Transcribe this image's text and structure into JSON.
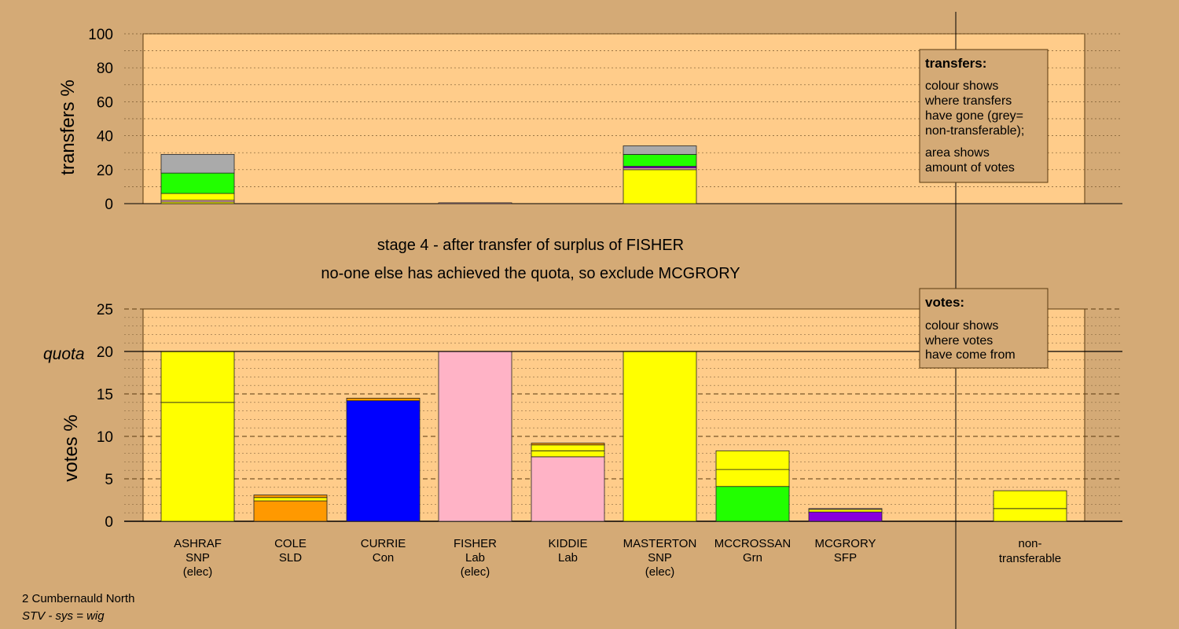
{
  "stage": {
    "line1": "stage 4 - after transfer of surplus of FISHER",
    "line2": "no-one else has achieved the quota, so exclude MCGRORY"
  },
  "footer": {
    "line1": "2 Cumbernauld North",
    "line2": "STV - sys = wig"
  },
  "legend_transfers": {
    "heading": "transfers:",
    "lines1": [
      "colour shows",
      "where transfers",
      "have gone (grey=",
      "non-transferable);"
    ],
    "lines2": [
      "area shows",
      "amount of votes"
    ]
  },
  "legend_votes": {
    "heading": "votes:",
    "lines": [
      "colour shows",
      "where votes",
      "have come from"
    ]
  },
  "colors": {
    "SNP": "#ffff00",
    "SLD": "#ff9900",
    "Con": "#0000ff",
    "Lab": "#ffb3c6",
    "Grn": "#22ff00",
    "SFP": "#8800dd",
    "nontransferable": "#aaaaaa",
    "background": "#d4aa76",
    "plot_bg": "#ffcc8a"
  },
  "chart_data": [
    {
      "type": "bar",
      "stacked": true,
      "ylabel": "transfers %",
      "ylim": [
        0,
        100
      ],
      "yticks": [
        0,
        20,
        40,
        60,
        80,
        100
      ],
      "categories": [
        "ASHRAF",
        "COLE",
        "CURRIE",
        "FISHER",
        "KIDDIE",
        "MASTERTON",
        "MCCROSSAN",
        "MCGRORY"
      ],
      "bars": [
        {
          "category": "ASHRAF",
          "segments": [
            {
              "color": "SNP",
              "value": 1
            },
            {
              "color": "Lab",
              "value": 1
            },
            {
              "color": "SNP",
              "value": 4
            },
            {
              "color": "Grn",
              "value": 12
            },
            {
              "color": "nontransferable",
              "value": 11
            }
          ]
        },
        {
          "category": "FISHER",
          "segments": [
            {
              "color": "Lab",
              "value": 0.5
            }
          ]
        },
        {
          "category": "MASTERTON",
          "segments": [
            {
              "color": "SNP",
              "value": 20
            },
            {
              "color": "Lab",
              "value": 1
            },
            {
              "color": "SFP",
              "value": 1
            },
            {
              "color": "Grn",
              "value": 7
            },
            {
              "color": "nontransferable",
              "value": 5
            }
          ]
        }
      ]
    },
    {
      "type": "bar",
      "stacked": true,
      "ylabel": "votes %",
      "ylim": [
        0,
        25
      ],
      "yticks": [
        0,
        5,
        10,
        15,
        20,
        25
      ],
      "quota": 20,
      "quota_label": "quota",
      "candidates": [
        {
          "name": "ASHRAF",
          "party": "SNP",
          "status": "(elec)",
          "segments": [
            {
              "color": "SNP",
              "value": 14
            },
            {
              "color": "SNP",
              "value": 6
            }
          ]
        },
        {
          "name": "COLE",
          "party": "SLD",
          "status": "",
          "segments": [
            {
              "color": "SLD",
              "value": 2.4
            },
            {
              "color": "SNP",
              "value": 0.4
            },
            {
              "color": "SLD",
              "value": 0.3
            }
          ]
        },
        {
          "name": "CURRIE",
          "party": "Con",
          "status": "",
          "segments": [
            {
              "color": "Con",
              "value": 14.2
            },
            {
              "color": "SLD",
              "value": 0.3
            }
          ]
        },
        {
          "name": "FISHER",
          "party": "Lab",
          "status": "(elec)",
          "segments": [
            {
              "color": "Lab",
              "value": 20
            }
          ]
        },
        {
          "name": "KIDDIE",
          "party": "Lab",
          "status": "",
          "segments": [
            {
              "color": "Lab",
              "value": 7.6
            },
            {
              "color": "SNP",
              "value": 0.7
            },
            {
              "color": "SNP",
              "value": 0.7
            },
            {
              "color": "SLD",
              "value": 0.2
            }
          ]
        },
        {
          "name": "MASTERTON",
          "party": "SNP",
          "status": "(elec)",
          "segments": [
            {
              "color": "SNP",
              "value": 20
            }
          ]
        },
        {
          "name": "MCCROSSAN",
          "party": "Grn",
          "status": "",
          "segments": [
            {
              "color": "Grn",
              "value": 4.1
            },
            {
              "color": "SNP",
              "value": 2
            },
            {
              "color": "SNP",
              "value": 2.2
            }
          ]
        },
        {
          "name": "MCGRORY",
          "party": "SFP",
          "status": "",
          "segments": [
            {
              "color": "SFP",
              "value": 1.1
            },
            {
              "color": "SNP",
              "value": 0.3
            },
            {
              "color": "Lab",
              "value": 0.1
            }
          ]
        }
      ],
      "nontransferable": {
        "label_line1": "non-",
        "label_line2": "transferable",
        "segments": [
          {
            "color": "SNP",
            "value": 1.5
          },
          {
            "color": "SNP",
            "value": 2.1
          }
        ]
      }
    }
  ]
}
